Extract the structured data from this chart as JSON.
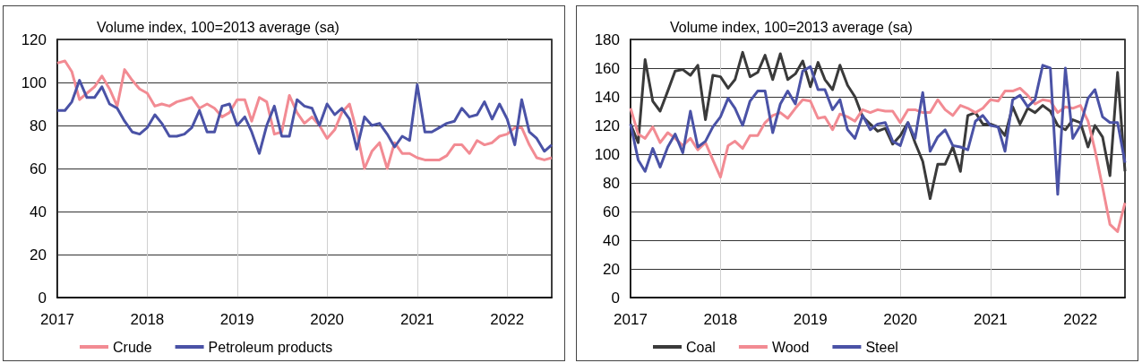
{
  "chart_data": [
    {
      "type": "line",
      "ylabel": "Volume index, 100=2013 average (sa)",
      "x": [
        "2017-01",
        "2017-02",
        "2017-03",
        "2017-04",
        "2017-05",
        "2017-06",
        "2017-07",
        "2017-08",
        "2017-09",
        "2017-10",
        "2017-11",
        "2017-12",
        "2018-01",
        "2018-02",
        "2018-03",
        "2018-04",
        "2018-05",
        "2018-06",
        "2018-07",
        "2018-08",
        "2018-09",
        "2018-10",
        "2018-11",
        "2018-12",
        "2019-01",
        "2019-02",
        "2019-03",
        "2019-04",
        "2019-05",
        "2019-06",
        "2019-07",
        "2019-08",
        "2019-09",
        "2019-10",
        "2019-11",
        "2019-12",
        "2020-01",
        "2020-02",
        "2020-03",
        "2020-04",
        "2020-05",
        "2020-06",
        "2020-07",
        "2020-08",
        "2020-09",
        "2020-10",
        "2020-11",
        "2020-12",
        "2021-01",
        "2021-02",
        "2021-03",
        "2021-04",
        "2021-05",
        "2021-06",
        "2021-07",
        "2021-08",
        "2021-09",
        "2021-10",
        "2021-11",
        "2021-12",
        "2022-01",
        "2022-02",
        "2022-03",
        "2022-04",
        "2022-05",
        "2022-06",
        "2022-07"
      ],
      "series": [
        {
          "name": "Crude",
          "color": "#f28b93",
          "values": [
            109,
            110,
            105,
            92,
            95,
            98,
            103,
            97,
            89,
            106,
            101,
            97,
            95,
            89,
            90,
            89,
            91,
            92,
            93,
            88,
            90,
            88,
            84,
            86,
            92,
            92,
            82,
            93,
            91,
            76,
            77,
            94,
            86,
            81,
            84,
            80,
            74,
            78,
            86,
            90,
            77,
            60,
            68,
            72,
            60,
            72,
            67,
            67,
            65,
            64,
            64,
            64,
            66,
            71,
            71,
            67,
            73,
            71,
            72,
            75,
            76,
            79,
            79,
            71,
            65,
            64,
            65
          ]
        },
        {
          "name": "Petroleum products",
          "color": "#4a52a6",
          "values": [
            87,
            87,
            91,
            101,
            93,
            93,
            98,
            90,
            88,
            82,
            77,
            76,
            79,
            85,
            81,
            75,
            75,
            76,
            79,
            87,
            77,
            77,
            89,
            90,
            80,
            84,
            77,
            67,
            80,
            89,
            75,
            75,
            92,
            89,
            88,
            80,
            90,
            85,
            88,
            83,
            69,
            84,
            80,
            81,
            76,
            70,
            75,
            73,
            99,
            77,
            77,
            79,
            81,
            82,
            88,
            84,
            85,
            91,
            83,
            90,
            83,
            71,
            92,
            77,
            74,
            68,
            71
          ]
        }
      ],
      "xlim": [
        "2017-01",
        "2022-07"
      ],
      "xticks": [
        "2017",
        "2018",
        "2019",
        "2020",
        "2021",
        "2022"
      ],
      "ylim": [
        0,
        120
      ],
      "yticks": [
        0,
        20,
        40,
        60,
        80,
        100,
        120
      ],
      "grid": true,
      "legend": "bottom",
      "marker": "none",
      "line_style": "solid"
    },
    {
      "type": "line",
      "ylabel": "Volume index, 100=2013 average (sa)",
      "x": [
        "2017-01",
        "2017-02",
        "2017-03",
        "2017-04",
        "2017-05",
        "2017-06",
        "2017-07",
        "2017-08",
        "2017-09",
        "2017-10",
        "2017-11",
        "2017-12",
        "2018-01",
        "2018-02",
        "2018-03",
        "2018-04",
        "2018-05",
        "2018-06",
        "2018-07",
        "2018-08",
        "2018-09",
        "2018-10",
        "2018-11",
        "2018-12",
        "2019-01",
        "2019-02",
        "2019-03",
        "2019-04",
        "2019-05",
        "2019-06",
        "2019-07",
        "2019-08",
        "2019-09",
        "2019-10",
        "2019-11",
        "2019-12",
        "2020-01",
        "2020-02",
        "2020-03",
        "2020-04",
        "2020-05",
        "2020-06",
        "2020-07",
        "2020-08",
        "2020-09",
        "2020-10",
        "2020-11",
        "2020-12",
        "2021-01",
        "2021-02",
        "2021-03",
        "2021-04",
        "2021-05",
        "2021-06",
        "2021-07",
        "2021-08",
        "2021-09",
        "2021-10",
        "2021-11",
        "2021-12",
        "2022-01",
        "2022-02",
        "2022-03",
        "2022-04",
        "2022-05",
        "2022-06",
        "2022-07"
      ],
      "series": [
        {
          "name": "Coal",
          "color": "#3a3a3a",
          "values": [
            121,
            108,
            166,
            137,
            130,
            144,
            158,
            159,
            155,
            162,
            124,
            155,
            154,
            146,
            152,
            171,
            154,
            157,
            169,
            152,
            170,
            152,
            156,
            165,
            147,
            164,
            152,
            145,
            162,
            148,
            140,
            126,
            121,
            116,
            118,
            107,
            113,
            122,
            108,
            95,
            69,
            93,
            93,
            105,
            88,
            127,
            129,
            121,
            121,
            119,
            113,
            133,
            121,
            132,
            129,
            134,
            130,
            120,
            117,
            124,
            122,
            105,
            120,
            112,
            85,
            157,
            88
          ]
        },
        {
          "name": "Wood",
          "color": "#f28b93",
          "values": [
            132,
            114,
            111,
            119,
            108,
            115,
            111,
            106,
            111,
            103,
            108,
            96,
            84,
            106,
            109,
            104,
            113,
            113,
            122,
            127,
            129,
            125,
            132,
            138,
            137,
            125,
            126,
            117,
            128,
            126,
            123,
            131,
            129,
            131,
            130,
            130,
            122,
            131,
            131,
            129,
            129,
            138,
            131,
            127,
            134,
            132,
            129,
            132,
            138,
            137,
            144,
            144,
            146,
            141,
            135,
            138,
            137,
            129,
            133,
            132,
            134,
            123,
            103,
            77,
            51,
            46,
            66
          ]
        },
        {
          "name": "Steel",
          "color": "#4a52a6",
          "values": [
            121,
            96,
            88,
            104,
            91,
            105,
            114,
            101,
            130,
            105,
            109,
            119,
            126,
            139,
            132,
            120,
            137,
            144,
            144,
            115,
            135,
            144,
            135,
            158,
            161,
            145,
            145,
            131,
            138,
            117,
            111,
            127,
            117,
            121,
            122,
            109,
            106,
            122,
            111,
            143,
            102,
            112,
            117,
            106,
            105,
            103,
            123,
            127,
            120,
            119,
            102,
            138,
            141,
            133,
            138,
            162,
            160,
            72,
            160,
            111,
            120,
            139,
            145,
            126,
            122,
            122,
            94
          ]
        }
      ],
      "xlim": [
        "2017-01",
        "2022-07"
      ],
      "xticks": [
        "2017",
        "2018",
        "2019",
        "2020",
        "2021",
        "2022"
      ],
      "ylim": [
        0,
        180
      ],
      "yticks": [
        0,
        20,
        40,
        60,
        80,
        100,
        120,
        140,
        160,
        180
      ],
      "grid": true,
      "legend": "bottom",
      "marker": "none",
      "line_style": "solid"
    }
  ]
}
